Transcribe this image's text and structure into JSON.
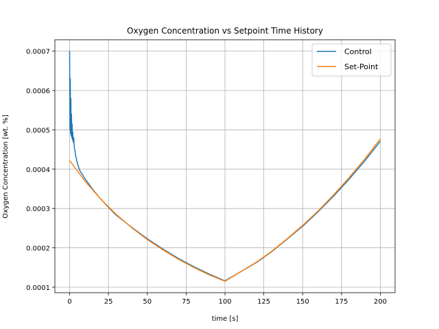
{
  "chart_data": {
    "type": "line",
    "title": "Oxygen Concentration vs Setpoint Time History",
    "xlabel": "time [s]",
    "ylabel": "Oxygen Concentration [wt. %]",
    "xlim": [
      -9.5,
      209.5
    ],
    "ylim": [
      8.6e-05,
      0.000729
    ],
    "xticks": [
      0,
      25,
      50,
      75,
      100,
      125,
      150,
      175,
      200
    ],
    "xtick_labels": [
      "0",
      "25",
      "50",
      "75",
      "100",
      "125",
      "150",
      "175",
      "200"
    ],
    "yticks": [
      0.0001,
      0.0002,
      0.0003,
      0.0004,
      0.0005,
      0.0006,
      0.0007
    ],
    "ytick_labels": [
      "0.0001",
      "0.0002",
      "0.0003",
      "0.0004",
      "0.0005",
      "0.0006",
      "0.0007"
    ],
    "grid": true,
    "legend_position": "top-right",
    "series": [
      {
        "name": "Control",
        "color": "#1f77b4",
        "x": [
          0,
          0.2,
          0.4,
          0.6,
          0.8,
          1.0,
          1.2,
          1.4,
          1.6,
          1.8,
          2.0,
          2.3,
          2.6,
          3.0,
          3.5,
          4,
          5,
          6,
          7,
          8,
          10,
          15,
          20,
          25,
          30,
          40,
          50,
          60,
          70,
          80,
          90,
          100,
          110,
          120,
          130,
          140,
          150,
          160,
          170,
          180,
          190,
          200
        ],
        "y": [
          0.0007,
          0.0005,
          0.00063,
          0.00049,
          0.00058,
          0.000485,
          0.00054,
          0.00048,
          0.000515,
          0.000475,
          0.000495,
          0.000468,
          0.00048,
          0.000455,
          0.000445,
          0.000432,
          0.000415,
          0.000402,
          0.000393,
          0.000388,
          0.000375,
          0.000348,
          0.000324,
          0.000303,
          0.000283,
          0.000252,
          0.000223,
          0.000197,
          0.000173,
          0.000152,
          0.000133,
          0.000116,
          0.000139,
          0.000162,
          0.00019,
          0.000222,
          0.000255,
          0.000292,
          0.000332,
          0.000375,
          0.000421,
          0.000471
        ]
      },
      {
        "name": "Set-Point",
        "color": "#ff7f0e",
        "x": [
          0,
          10,
          20,
          30,
          40,
          50,
          60,
          70,
          80,
          90,
          100,
          110,
          120,
          130,
          140,
          150,
          160,
          170,
          180,
          190,
          200
        ],
        "y": [
          0.000422,
          0.000369,
          0.000324,
          0.000285,
          0.000251,
          0.000221,
          0.000195,
          0.000171,
          0.00015,
          0.000131,
          0.000115,
          0.000139,
          0.000163,
          0.000191,
          0.000223,
          0.000257,
          0.000294,
          0.000335,
          0.000379,
          0.000426,
          0.000477
        ]
      }
    ]
  }
}
